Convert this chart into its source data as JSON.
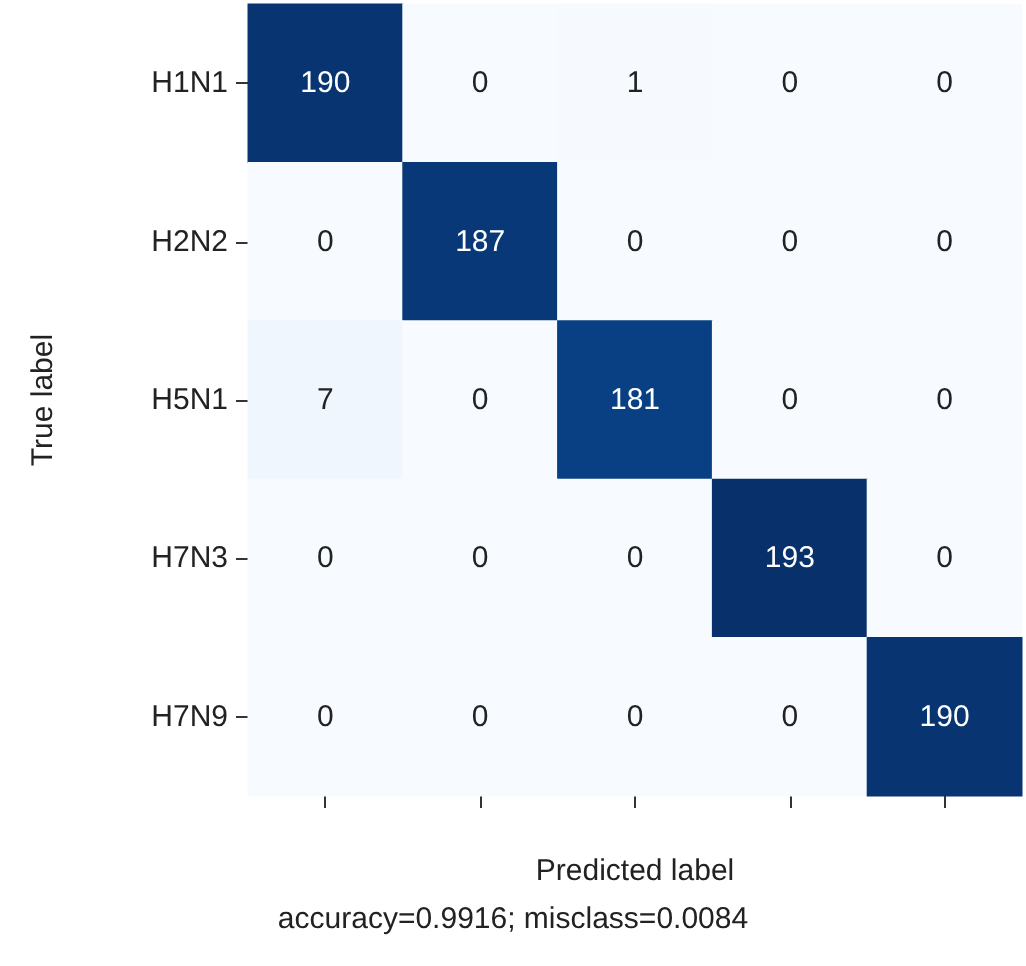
{
  "chart_data": {
    "type": "heatmap",
    "xlabel": "Predicted label",
    "ylabel": "True label",
    "annotations": [
      "accuracy=0.9916; misclass=0.0084"
    ],
    "categories": [
      null,
      null,
      null,
      null,
      null
    ],
    "y_categories": [
      "H1N1",
      "H2N2",
      "H5N1",
      "H7N3",
      "H7N9"
    ],
    "cells": [
      [
        190,
        0,
        1,
        0,
        0
      ],
      [
        0,
        187,
        0,
        0,
        0
      ],
      [
        7,
        0,
        181,
        0,
        0
      ],
      [
        0,
        0,
        0,
        193,
        0
      ],
      [
        0,
        0,
        0,
        0,
        190
      ]
    ],
    "data_labels": true
  }
}
